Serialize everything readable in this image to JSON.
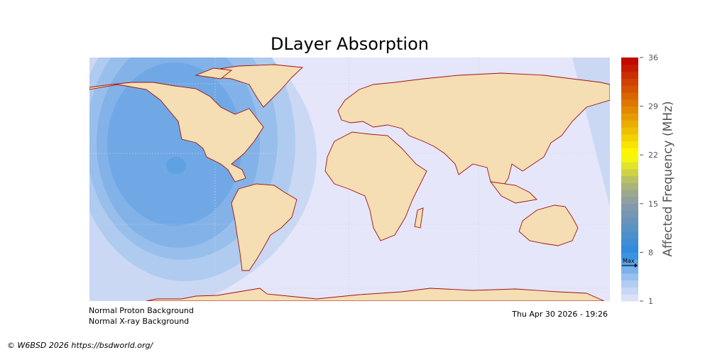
{
  "title": "DLayer Absorption",
  "colorbar": {
    "label": "Affected Frequency (MHz)",
    "min": 1,
    "max": 36,
    "ticks": [
      "36",
      "29",
      "22",
      "15",
      "8",
      "1"
    ],
    "tick_values": [
      36,
      29,
      22,
      15,
      8,
      1
    ],
    "marker_label": "Max",
    "marker_value": 6,
    "color_stops": [
      [
        1,
        "#e6e6fa"
      ],
      [
        4,
        "#a8c8f0"
      ],
      [
        8,
        "#2a8ae0"
      ],
      [
        15,
        "#8a9aa8"
      ],
      [
        18,
        "#b0b870"
      ],
      [
        22,
        "#ffff00"
      ],
      [
        29,
        "#e08000"
      ],
      [
        36,
        "#c00000"
      ]
    ]
  },
  "map": {
    "ocean_color": "#e6e6fa",
    "land_color": "#f5deb3",
    "coast_color": "#a01010",
    "contour_colors": [
      "#cad8f4",
      "#b0cbf0",
      "#98bfec",
      "#82b2e8",
      "#70a8e6",
      "#5ea2e4"
    ]
  },
  "status": {
    "proton": "Normal Proton Background",
    "xray": "Normal X-ray Background",
    "timestamp": "Thu Apr 30 2026 - 19:26"
  },
  "credit": "© W6BSD 2026 https://bsdworld.org/"
}
